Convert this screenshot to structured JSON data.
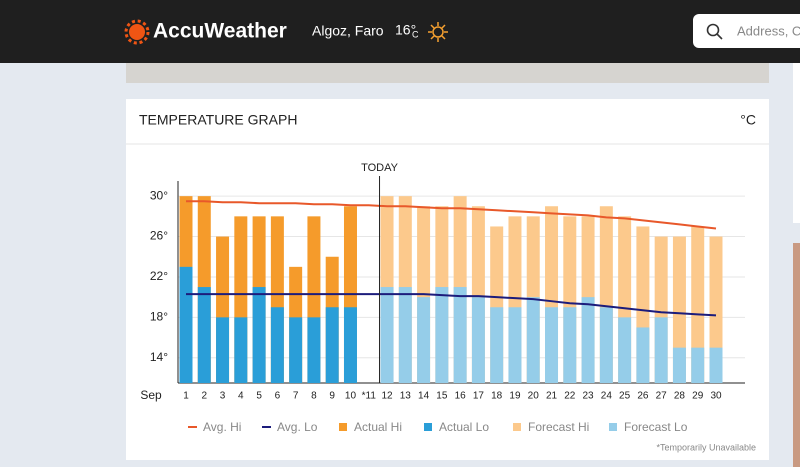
{
  "header": {
    "logo": "AccuWeather",
    "location": "Algoz, Faro",
    "temp": "16°",
    "temp_unit": "C",
    "search_placeholder": "Address, Ci"
  },
  "card": {
    "title": "TEMPERATURE GRAPH",
    "unit": "°C",
    "footnote": "*Temporarily Unavailable"
  },
  "chart_data": {
    "type": "bar",
    "today_label": "TODAY",
    "month": "Sep",
    "categories": [
      "1",
      "2",
      "3",
      "4",
      "5",
      "6",
      "7",
      "8",
      "9",
      "10",
      "*11",
      "12",
      "13",
      "14",
      "15",
      "16",
      "17",
      "18",
      "19",
      "20",
      "21",
      "22",
      "23",
      "24",
      "25",
      "26",
      "27",
      "28",
      "29",
      "30"
    ],
    "ylim": [
      11.5,
      31.5
    ],
    "yticks": [
      {
        "value": 14,
        "label": "14°"
      },
      {
        "value": 18,
        "label": "18°"
      },
      {
        "value": 22,
        "label": "22°"
      },
      {
        "value": 26,
        "label": "26°"
      },
      {
        "value": 30,
        "label": "30°"
      }
    ],
    "grid": true,
    "series": [
      {
        "name": "Avg. Hi",
        "type": "line",
        "color": "#e8582a",
        "values": [
          29.5,
          29.5,
          29.4,
          29.4,
          29.3,
          29.3,
          29.3,
          29.2,
          29.2,
          29.1,
          29.1,
          29.0,
          29.0,
          28.9,
          28.8,
          28.8,
          28.7,
          28.6,
          28.5,
          28.4,
          28.3,
          28.2,
          28.1,
          27.9,
          27.8,
          27.6,
          27.4,
          27.2,
          27.0,
          26.8
        ]
      },
      {
        "name": "Avg. Lo",
        "type": "line",
        "color": "#1c1c7c",
        "values": [
          20.3,
          20.3,
          20.3,
          20.3,
          20.3,
          20.3,
          20.3,
          20.3,
          20.3,
          20.3,
          20.3,
          20.3,
          20.3,
          20.3,
          20.2,
          20.1,
          20.1,
          20.0,
          19.9,
          19.8,
          19.6,
          19.4,
          19.3,
          19.1,
          18.9,
          18.7,
          18.5,
          18.4,
          18.3,
          18.2
        ]
      },
      {
        "name": "Actual Hi",
        "type": "bar",
        "color": "#f59b2b",
        "values": [
          30,
          30,
          26,
          28,
          28,
          28,
          23,
          28,
          24,
          29,
          null,
          null,
          null,
          null,
          null,
          null,
          null,
          null,
          null,
          null,
          null,
          null,
          null,
          null,
          null,
          null,
          null,
          null,
          null,
          null
        ]
      },
      {
        "name": "Actual Lo",
        "type": "bar",
        "color": "#2a9ed8",
        "values": [
          23,
          21,
          18,
          18,
          21,
          19,
          18,
          18,
          19,
          19,
          null,
          null,
          null,
          null,
          null,
          null,
          null,
          null,
          null,
          null,
          null,
          null,
          null,
          null,
          null,
          null,
          null,
          null,
          null,
          null
        ]
      },
      {
        "name": "Forecast Hi",
        "type": "bar",
        "color": "#fcc98c",
        "values": [
          null,
          null,
          null,
          null,
          null,
          null,
          null,
          null,
          null,
          null,
          null,
          30,
          30,
          29,
          29,
          30,
          29,
          27,
          28,
          28,
          29,
          28,
          28,
          29,
          28,
          27,
          26,
          26,
          27,
          26
        ]
      },
      {
        "name": "Forecast Lo",
        "type": "bar",
        "color": "#95cde9",
        "values": [
          null,
          null,
          null,
          null,
          null,
          null,
          null,
          null,
          null,
          null,
          null,
          21,
          21,
          20,
          21,
          21,
          20,
          19,
          19,
          20,
          19,
          19,
          20,
          19,
          18,
          17,
          18,
          15,
          15,
          15
        ]
      }
    ]
  }
}
